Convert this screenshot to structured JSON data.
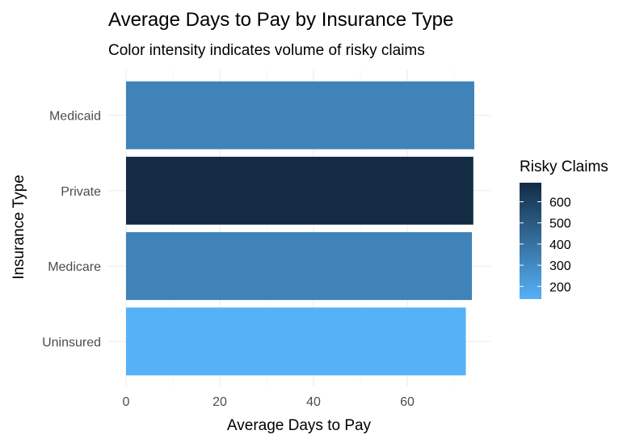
{
  "chart_data": {
    "type": "bar",
    "orientation": "horizontal",
    "title": "Average Days to Pay by Insurance Type",
    "subtitle": "Color intensity indicates volume of risky claims",
    "xlabel": "Average Days to Pay",
    "ylabel": "Insurance Type",
    "categories": [
      "Uninsured",
      "Medicare",
      "Private",
      "Medicaid"
    ],
    "values": [
      72.5,
      73.8,
      74.1,
      74.3
    ],
    "color_values": [
      140,
      330,
      690,
      330
    ],
    "xlim": [
      0,
      77.5
    ],
    "x_ticks": [
      0,
      20,
      40,
      60
    ],
    "grid": true,
    "legend": {
      "title": "Risky Claims",
      "placement": "right",
      "range": [
        140,
        690
      ],
      "ticks": [
        200,
        300,
        400,
        500,
        600
      ],
      "low_color": "#56B1F7",
      "high_color": "#132B43"
    }
  }
}
